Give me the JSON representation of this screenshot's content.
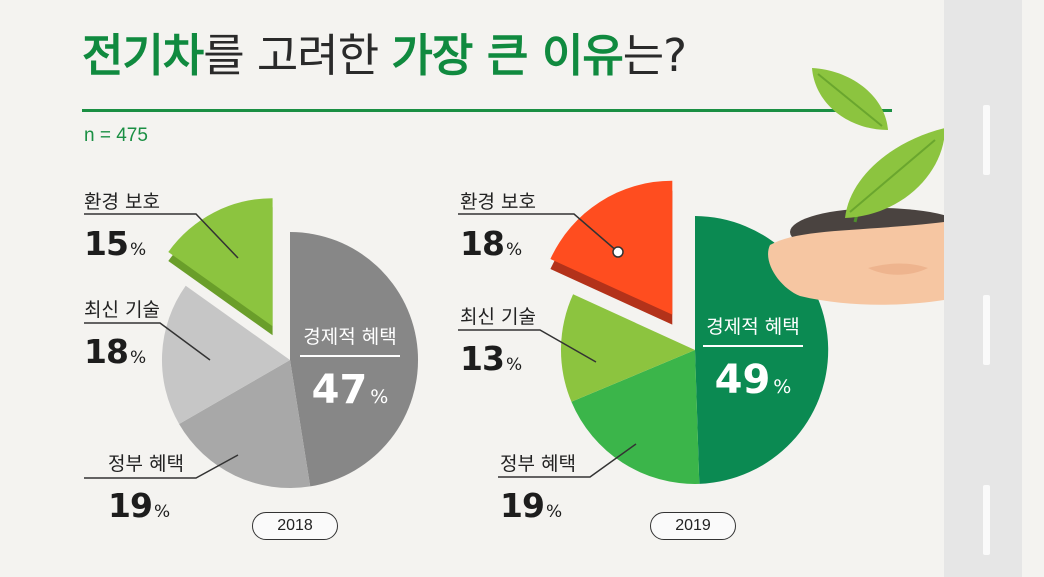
{
  "title": {
    "part1": "전기차",
    "part2": "를 고려한 ",
    "part3": "가장 큰 이유",
    "part4": "는?"
  },
  "sample_size": "n = 475",
  "colors": {
    "brand_green": "#108a3f",
    "2018": {
      "economic": "#878787",
      "government": "#a8a8a8",
      "technology": "#c6c6c6",
      "environment": "#8cc43f"
    },
    "2019": {
      "economic": "#0b8a52",
      "government": "#3bb54a",
      "technology": "#8cc43f",
      "environment": "#ff4d1f"
    }
  },
  "chart_data": [
    {
      "type": "pie",
      "year_label": "2018",
      "slices": [
        {
          "key": "economic",
          "label": "경제적 혜택",
          "value": 47,
          "display": "47"
        },
        {
          "key": "government",
          "label": "정부 혜택",
          "value": 19,
          "display": "19"
        },
        {
          "key": "technology",
          "label": "최신 기술",
          "value": 18,
          "display": "18"
        },
        {
          "key": "environment",
          "label": "환경 보호",
          "value": 15,
          "display": "15"
        }
      ],
      "unit": "%"
    },
    {
      "type": "pie",
      "year_label": "2019",
      "slices": [
        {
          "key": "economic",
          "label": "경제적 혜택",
          "value": 49,
          "display": "49"
        },
        {
          "key": "government",
          "label": "정부 혜택",
          "value": 19,
          "display": "19"
        },
        {
          "key": "technology",
          "label": "최신 기술",
          "value": 13,
          "display": "13"
        },
        {
          "key": "environment",
          "label": "환경 보호",
          "value": 18,
          "display": "18"
        }
      ],
      "unit": "%"
    }
  ]
}
